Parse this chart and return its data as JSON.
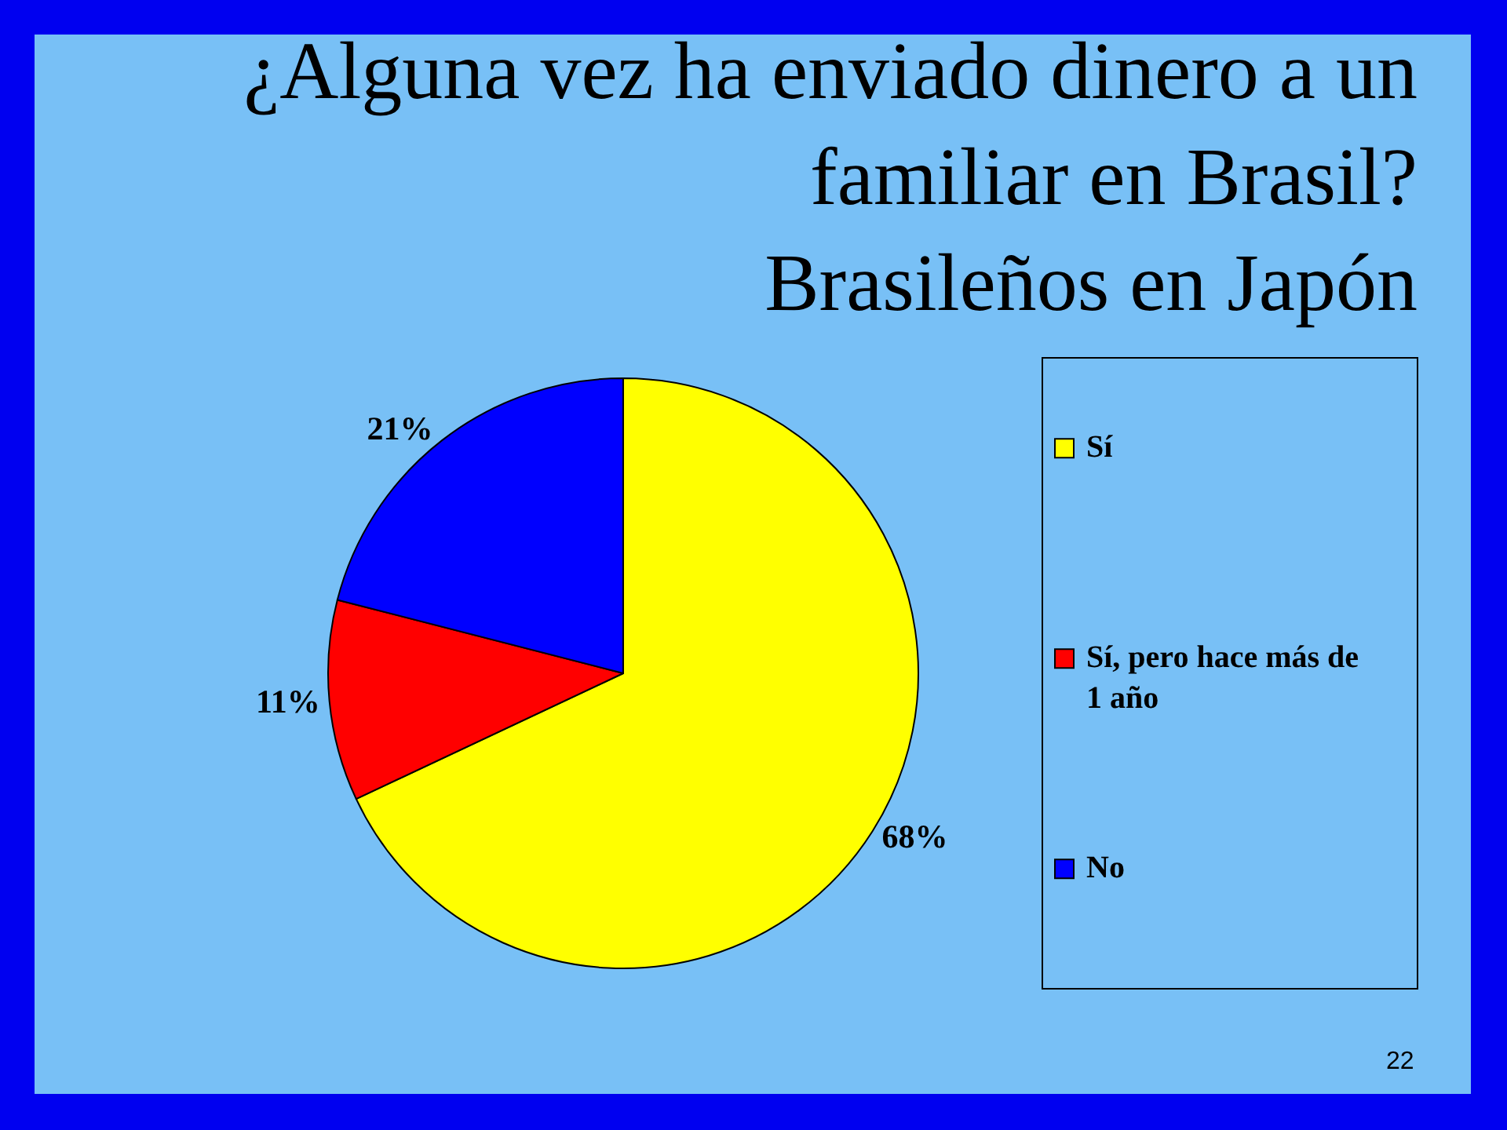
{
  "chart_data": {
    "type": "pie",
    "title": "¿Alguna vez ha enviado dinero a un familiar en Brasil?",
    "subtitle": "Brasileños en Japón",
    "categories": [
      "Sí",
      "Sí, pero hace más de 1 año",
      "No"
    ],
    "values": [
      68,
      11,
      21
    ],
    "colors": [
      "#ffff00",
      "#ff0000",
      "#0000ff"
    ],
    "value_labels": [
      "68%",
      "11%",
      "21%"
    ],
    "legend": "right",
    "annotations": [
      "22"
    ]
  }
}
